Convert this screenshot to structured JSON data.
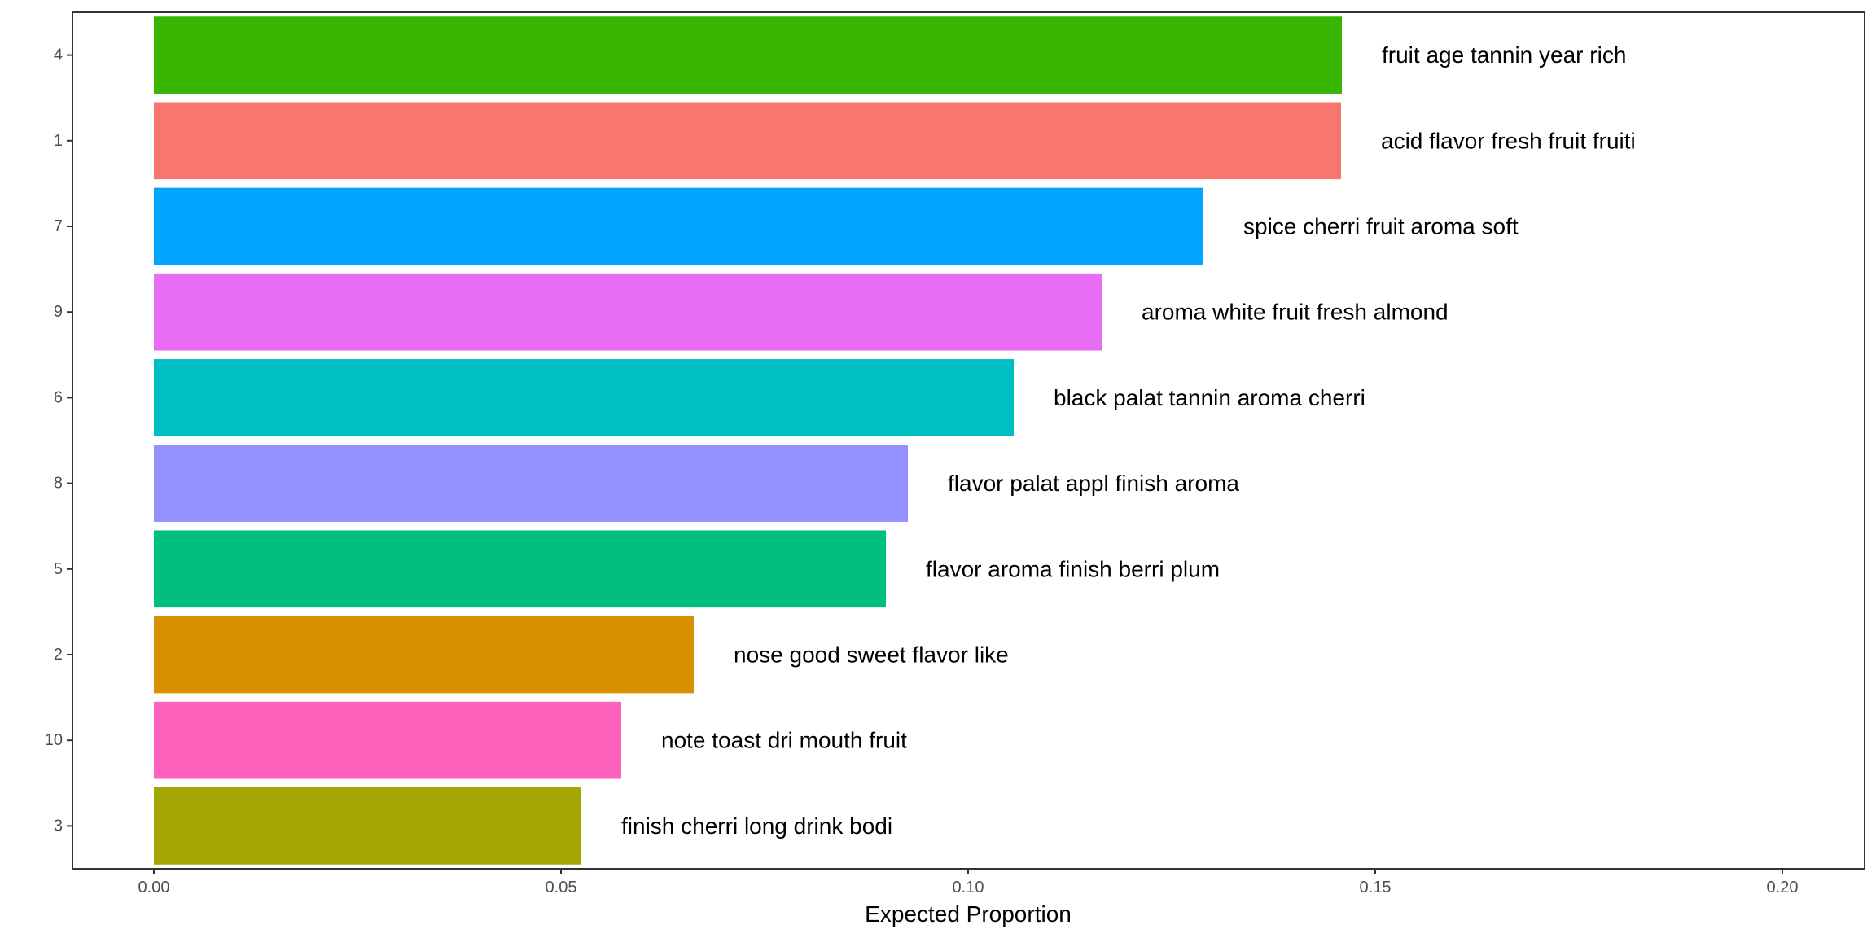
{
  "chart_data": {
    "type": "bar",
    "orientation": "horizontal",
    "title": "",
    "xlabel": "Expected Proportion",
    "ylabel": "",
    "xlim": [
      -0.01,
      0.2101
    ],
    "x_ticks": [
      "0.00",
      "0.05",
      "0.10",
      "0.15",
      "0.20"
    ],
    "x_tick_values": [
      0.0,
      0.05,
      0.1,
      0.15,
      0.2
    ],
    "grid": false,
    "legend": "none",
    "bars": [
      {
        "category": "4",
        "value": 0.1459,
        "label": "fruit age tannin year rich",
        "color": "#39B600"
      },
      {
        "category": "1",
        "value": 0.1458,
        "label": "acid flavor fresh fruit fruiti",
        "color": "#F8766D"
      },
      {
        "category": "7",
        "value": 0.1289,
        "label": "spice cherri fruit aroma soft",
        "color": "#00A5FF"
      },
      {
        "category": "9",
        "value": 0.1164,
        "label": "aroma white fruit fresh almond",
        "color": "#E76BF3"
      },
      {
        "category": "6",
        "value": 0.1056,
        "label": "black palat tannin aroma cherri",
        "color": "#00BFC4"
      },
      {
        "category": "8",
        "value": 0.0926,
        "label": "flavor palat appl finish aroma",
        "color": "#9590FF"
      },
      {
        "category": "5",
        "value": 0.0899,
        "label": "flavor aroma finish berri plum",
        "color": "#00BF7D"
      },
      {
        "category": "2",
        "value": 0.0663,
        "label": "nose good sweet flavor like",
        "color": "#D89000"
      },
      {
        "category": "10",
        "value": 0.0574,
        "label": "note toast dri mouth fruit",
        "color": "#FF62BC"
      },
      {
        "category": "3",
        "value": 0.0525,
        "label": "finish cherri long drink bodi",
        "color": "#A3A500"
      }
    ]
  }
}
